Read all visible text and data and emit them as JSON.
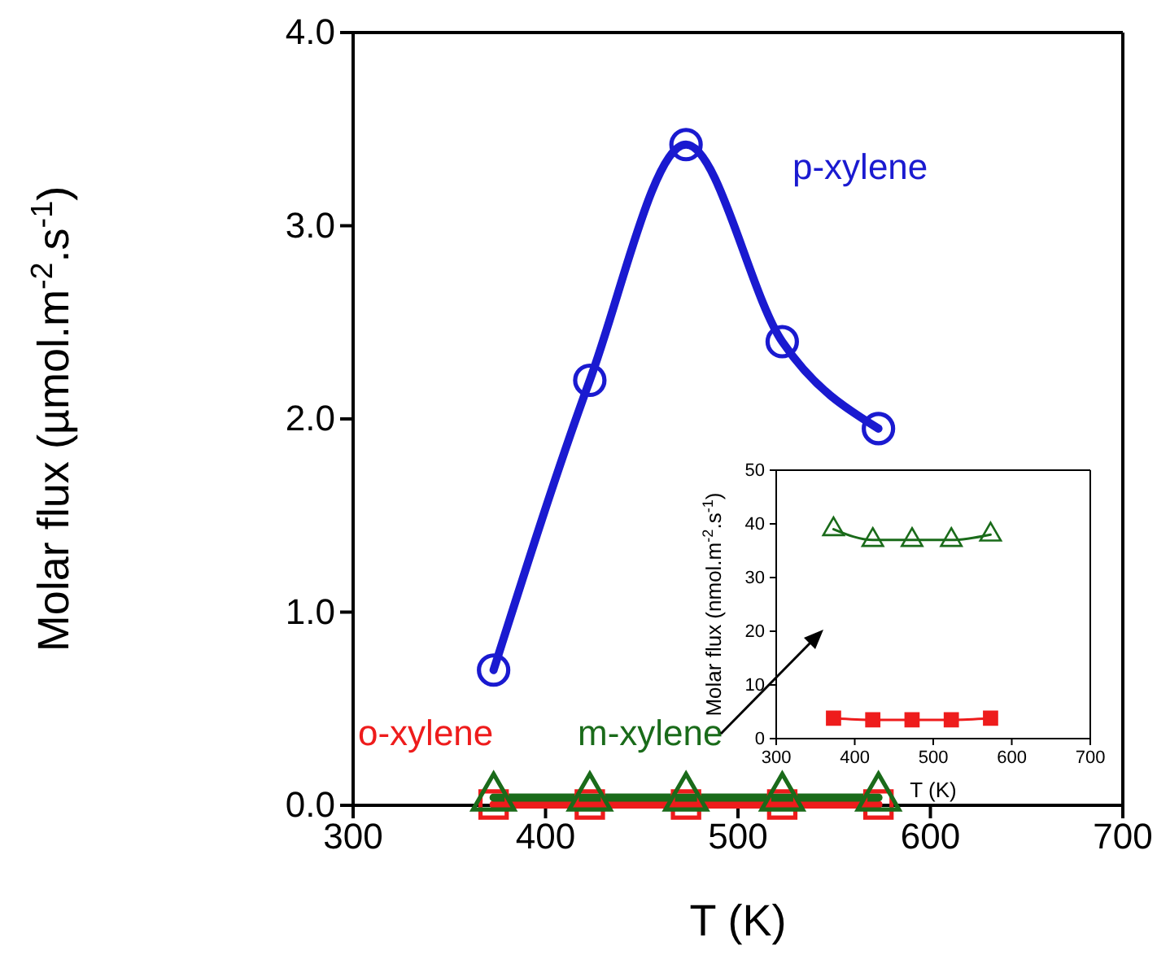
{
  "chart_data": [
    {
      "type": "line",
      "xlabel": "T (K)",
      "ylabel": "Molar flux (µmol.m$^{-2}$.s$^{-1}$)",
      "x": [
        373,
        423,
        473,
        523,
        573
      ],
      "xlim": [
        300,
        700
      ],
      "xticks": [
        300,
        400,
        500,
        600,
        700
      ],
      "ylim": [
        0,
        4
      ],
      "yticks": [
        {
          "value": 0,
          "label": "0.0"
        },
        {
          "value": 1,
          "label": "1.0"
        },
        {
          "value": 2,
          "label": "2.0"
        },
        {
          "value": 3,
          "label": "3.0"
        },
        {
          "value": 4,
          "label": "4.0"
        }
      ],
      "grid": false,
      "legend": false,
      "series": [
        {
          "name": "p-xylene",
          "color": "#1a1ad0",
          "marker": "circle",
          "values": [
            0.7,
            2.2,
            3.42,
            2.4,
            1.95
          ]
        },
        {
          "name": "o-xylene",
          "color": "#ee1c1c",
          "marker": "square",
          "values": [
            0.004,
            0.004,
            0.004,
            0.004,
            0.004
          ]
        },
        {
          "name": "m-xylene",
          "color": "#1a6b1a",
          "marker": "triangle",
          "values": [
            0.04,
            0.04,
            0.04,
            0.04,
            0.04
          ]
        }
      ]
    },
    {
      "type": "line",
      "xlabel": "T (K)",
      "ylabel": "Molar flux (nmol.m$^{-2}$.s$^{-1}$)",
      "x": [
        373,
        423,
        473,
        523,
        573
      ],
      "xlim": [
        300,
        700
      ],
      "xticks": [
        300,
        400,
        500,
        600,
        700
      ],
      "ylim": [
        0,
        50
      ],
      "yticks": [
        0,
        10,
        20,
        30,
        40,
        50
      ],
      "grid": false,
      "legend": false,
      "series": [
        {
          "color": "#1a6b1a",
          "marker": "triangle",
          "values": [
            39,
            37,
            37,
            37,
            38
          ]
        },
        {
          "color": "#ee1c1c",
          "marker": "square",
          "values": [
            3.8,
            3.5,
            3.5,
            3.5,
            3.8
          ]
        }
      ]
    }
  ]
}
